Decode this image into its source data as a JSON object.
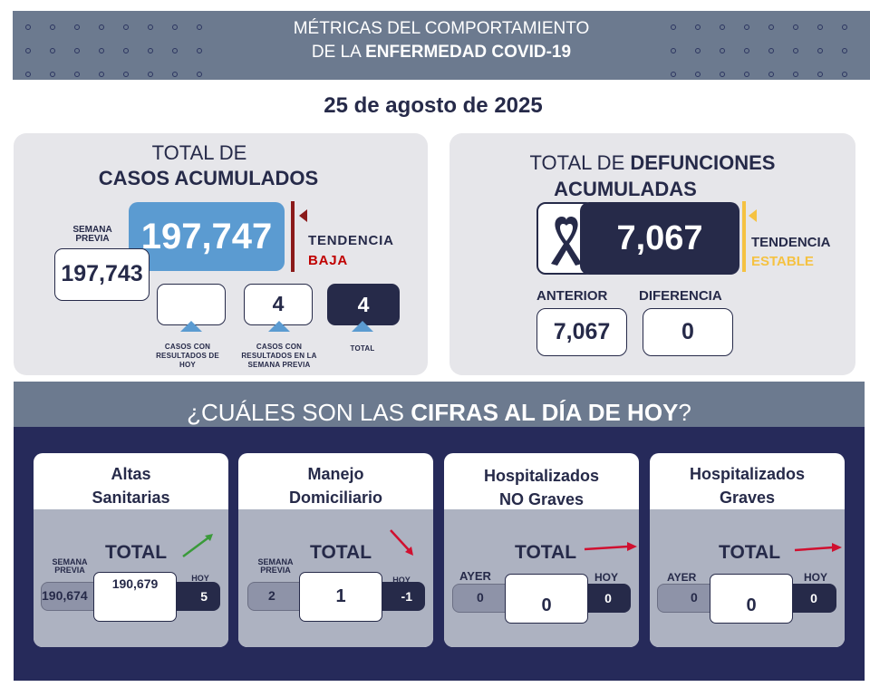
{
  "header": {
    "line1": "MÉTRICAS DEL COMPORTAMIENTO",
    "line2_prefix": "DE LA ",
    "line2_bold": "ENFERMEDAD COVID-19"
  },
  "date": "25 de agosto de 2025",
  "casos": {
    "title_line1": "TOTAL DE",
    "title_line2": "CASOS ACUMULADOS",
    "total": "197,747",
    "prev_label": "SEMANA PREVIA",
    "prev_value": "197,743",
    "trend_label": "TENDENCIA",
    "trend_value": "BAJA",
    "today_value": "",
    "today_label": "CASOS CON RESULTADOS DE HOY",
    "week_value": "4",
    "week_label": "CASOS CON RESULTADOS EN LA SEMANA PREVIA",
    "total_value": "4",
    "total_label": "TOTAL"
  },
  "defunciones": {
    "title_prefix": "TOTAL DE ",
    "title_bold1": "DEFUNCIONES",
    "title_bold2": "ACUMULADAS",
    "total": "7,067",
    "trend_label": "TENDENCIA",
    "trend_value": "ESTABLE",
    "anterior_label": "ANTERIOR",
    "anterior_value": "7,067",
    "diferencia_label": "DIFERENCIA",
    "diferencia_value": "0"
  },
  "cifras": {
    "title_prefix": "¿CUÁLES SON LAS ",
    "title_bold": "CIFRAS AL DÍA DE HOY",
    "title_suffix": "?"
  },
  "cards": [
    {
      "title1": "Altas",
      "title2": "Sanitarias",
      "total_label": "TOTAL",
      "left_label": "SEMANA PREVIA",
      "left_value": "190,674",
      "center_value": "190,679",
      "right_label": "HOY",
      "right_value": "5"
    },
    {
      "title1": "Manejo",
      "title2": "Domiciliario",
      "total_label": "TOTAL",
      "left_label": "SEMANA PREVIA",
      "left_value": "2",
      "center_value": "1",
      "right_label": "HOY",
      "right_value": "-1"
    },
    {
      "title1": "Hospitalizados",
      "title2": "NO Graves",
      "total_label": "TOTAL",
      "left_label": "AYER",
      "left_value": "0",
      "center_value": "0",
      "right_label": "HOY",
      "right_value": "0"
    },
    {
      "title1": "Hospitalizados",
      "title2": "Graves",
      "total_label": "TOTAL",
      "left_label": "AYER",
      "left_value": "0",
      "center_value": "0",
      "right_label": "HOY",
      "right_value": "0"
    }
  ],
  "colors": {
    "navy": "#262a49",
    "blue": "#5b9bd1",
    "red": "#c00000",
    "yellow": "#f5c242",
    "green": "#3a9a3a"
  }
}
